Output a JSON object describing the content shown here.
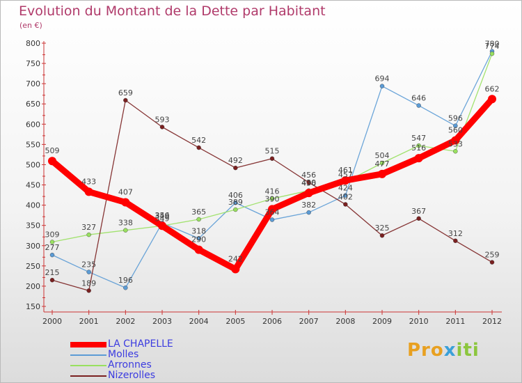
{
  "title": "Evolution du Montant de la Dette par Habitant",
  "unit": "(en €)",
  "logo": {
    "part1": "Pro",
    "part2": "x",
    "part3": "iti"
  },
  "chart_data": {
    "type": "line",
    "x": [
      "2000",
      "2001",
      "2002",
      "2003",
      "2004",
      "2005",
      "2006",
      "2007",
      "2008",
      "2009",
      "2010",
      "2011",
      "2012"
    ],
    "ylim": [
      150,
      800
    ],
    "yticks": [
      150,
      200,
      250,
      300,
      350,
      400,
      450,
      500,
      550,
      600,
      650,
      700,
      750,
      800
    ],
    "grid": false,
    "legend_position": "bottom-left",
    "series": [
      {
        "name": "LA CHAPELLE",
        "color": "#ff0000",
        "values": [
          509,
          433,
          407,
          349,
          290,
          242,
          390,
          430,
          461,
          477,
          516,
          560,
          662
        ]
      },
      {
        "name": "Molles",
        "color": "#5b9bd5",
        "values": [
          277,
          235,
          196,
          356,
          318,
          406,
          364,
          382,
          424,
          694,
          646,
          596,
          780
        ]
      },
      {
        "name": "Arronnes",
        "color": "#99e060",
        "values": [
          309,
          327,
          338,
          349,
          365,
          389,
          416,
          436,
          457,
          504,
          547,
          533,
          774
        ]
      },
      {
        "name": "Nizerolles",
        "color": "#7a2020",
        "values": [
          215,
          189,
          659,
          593,
          542,
          492,
          515,
          456,
          402,
          325,
          367,
          312,
          259
        ]
      }
    ]
  }
}
